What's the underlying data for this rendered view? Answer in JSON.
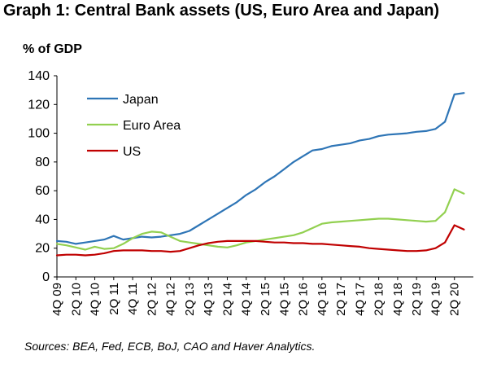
{
  "chart_data": {
    "type": "line",
    "title": "Graph 1: Central Bank assets (US, Euro Area and Japan)",
    "ylabel": "% of GDP",
    "xlabel": "",
    "ylim": [
      0,
      140
    ],
    "yticks": [
      0,
      20,
      40,
      60,
      80,
      100,
      120,
      140
    ],
    "xlim": [
      2009.75,
      2020.75
    ],
    "xticks": [
      {
        "label": "4Q 09",
        "t": 2009.75
      },
      {
        "label": "2Q 10",
        "t": 2010.25
      },
      {
        "label": "4Q 10",
        "t": 2010.75
      },
      {
        "label": "2Q 11",
        "t": 2011.25
      },
      {
        "label": "4Q 11",
        "t": 2011.75
      },
      {
        "label": "2Q 12",
        "t": 2012.25
      },
      {
        "label": "4Q 12",
        "t": 2012.75
      },
      {
        "label": "2Q 13",
        "t": 2013.25
      },
      {
        "label": "4Q 13",
        "t": 2013.75
      },
      {
        "label": "2Q 14",
        "t": 2014.25
      },
      {
        "label": "4Q 14",
        "t": 2014.75
      },
      {
        "label": "2Q 15",
        "t": 2015.25
      },
      {
        "label": "4Q 15",
        "t": 2015.75
      },
      {
        "label": "2Q 16",
        "t": 2016.25
      },
      {
        "label": "4Q 16",
        "t": 2016.75
      },
      {
        "label": "2Q 17",
        "t": 2017.25
      },
      {
        "label": "4Q 17",
        "t": 2017.75
      },
      {
        "label": "2Q 18",
        "t": 2018.25
      },
      {
        "label": "4Q 18",
        "t": 2018.75
      },
      {
        "label": "2Q 19",
        "t": 2019.25
      },
      {
        "label": "4Q 19",
        "t": 2019.75
      },
      {
        "label": "2Q 20",
        "t": 2020.25
      }
    ],
    "legend_position": "top-left",
    "series": [
      {
        "name": "Japan",
        "color": "#2E75B6",
        "x": [
          2009.75,
          2010.0,
          2010.25,
          2010.5,
          2010.75,
          2011.0,
          2011.25,
          2011.5,
          2011.75,
          2012.0,
          2012.25,
          2012.5,
          2012.75,
          2013.0,
          2013.25,
          2013.5,
          2013.75,
          2014.0,
          2014.25,
          2014.5,
          2014.75,
          2015.0,
          2015.25,
          2015.5,
          2015.75,
          2016.0,
          2016.25,
          2016.5,
          2016.75,
          2017.0,
          2017.25,
          2017.5,
          2017.75,
          2018.0,
          2018.25,
          2018.5,
          2018.75,
          2019.0,
          2019.25,
          2019.5,
          2019.75,
          2020.0,
          2020.25,
          2020.5
        ],
        "values": [
          25,
          24.5,
          23,
          24,
          25,
          26,
          28.5,
          26,
          27,
          28,
          27.5,
          28,
          29,
          30,
          32,
          36,
          40,
          44,
          48,
          52,
          57,
          61,
          66,
          70,
          75,
          80,
          84,
          88,
          89,
          91,
          92,
          93,
          95,
          96,
          98,
          99,
          99.5,
          100,
          101,
          101.5,
          103,
          108,
          127,
          128
        ]
      },
      {
        "name": "Euro Area",
        "color": "#92D050",
        "x": [
          2009.75,
          2010.0,
          2010.25,
          2010.5,
          2010.75,
          2011.0,
          2011.25,
          2011.5,
          2011.75,
          2012.0,
          2012.25,
          2012.5,
          2012.75,
          2013.0,
          2013.25,
          2013.5,
          2013.75,
          2014.0,
          2014.25,
          2014.5,
          2014.75,
          2015.0,
          2015.25,
          2015.5,
          2015.75,
          2016.0,
          2016.25,
          2016.5,
          2016.75,
          2017.0,
          2017.25,
          2017.5,
          2017.75,
          2018.0,
          2018.25,
          2018.5,
          2018.75,
          2019.0,
          2019.25,
          2019.5,
          2019.75,
          2020.0,
          2020.25,
          2020.5
        ],
        "values": [
          23,
          22,
          20.5,
          19,
          21,
          19.5,
          20,
          23,
          27,
          30,
          31.5,
          31,
          28,
          25,
          24,
          23,
          22,
          21,
          20.5,
          22,
          24,
          25,
          26,
          27,
          28,
          29,
          31,
          34,
          37,
          38,
          38.5,
          39,
          39.5,
          40,
          40.5,
          40.5,
          40,
          39.5,
          39,
          38.5,
          39,
          45,
          61,
          58
        ]
      },
      {
        "name": "US",
        "color": "#C00000",
        "x": [
          2009.75,
          2010.0,
          2010.25,
          2010.5,
          2010.75,
          2011.0,
          2011.25,
          2011.5,
          2011.75,
          2012.0,
          2012.25,
          2012.5,
          2012.75,
          2013.0,
          2013.25,
          2013.5,
          2013.75,
          2014.0,
          2014.25,
          2014.5,
          2014.75,
          2015.0,
          2015.25,
          2015.5,
          2015.75,
          2016.0,
          2016.25,
          2016.5,
          2016.75,
          2017.0,
          2017.25,
          2017.5,
          2017.75,
          2018.0,
          2018.25,
          2018.5,
          2018.75,
          2019.0,
          2019.25,
          2019.5,
          2019.75,
          2020.0,
          2020.25,
          2020.5
        ],
        "values": [
          15,
          15.5,
          15.5,
          15,
          15.5,
          16.5,
          18,
          18.5,
          18.5,
          18.5,
          18,
          18,
          17.5,
          18,
          20,
          22,
          23.5,
          24.5,
          25,
          25,
          25,
          25,
          24.5,
          24,
          24,
          23.5,
          23.5,
          23,
          23,
          22.5,
          22,
          21.5,
          21,
          20,
          19.5,
          19,
          18.5,
          18,
          18,
          18.5,
          20,
          24,
          36,
          33
        ]
      }
    ]
  },
  "footer": {
    "source": "Sources: BEA, Fed, ECB, BoJ, CAO and Haver Analytics."
  }
}
